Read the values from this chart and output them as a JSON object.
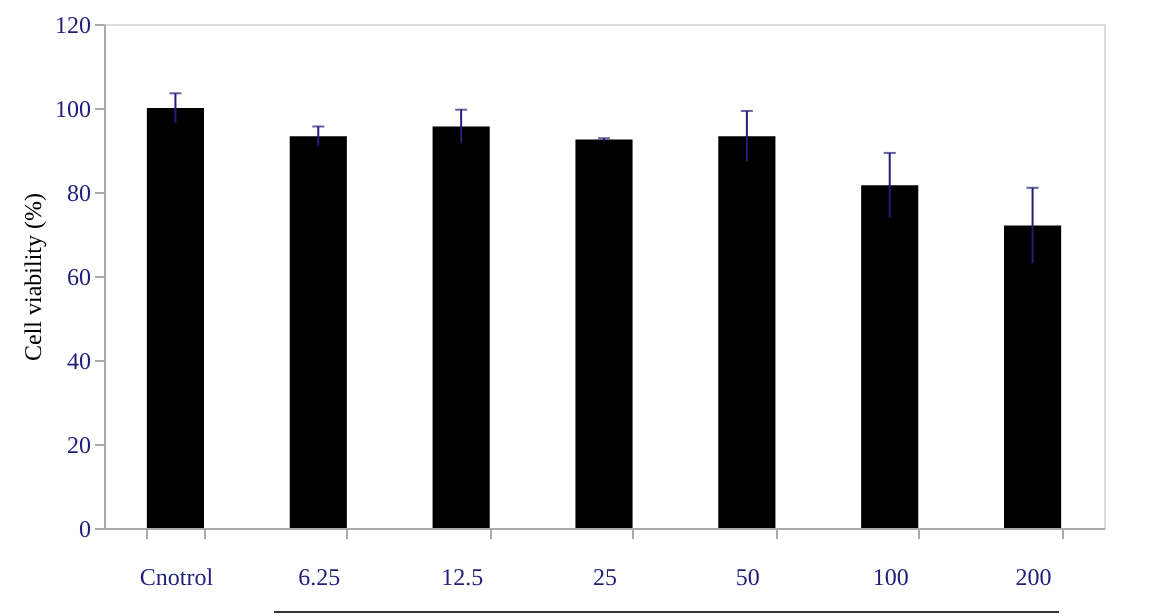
{
  "chart_data": {
    "type": "bar",
    "ylabel": "Cell viability (%)",
    "categories": [
      "Cnotrol",
      "6.25",
      "12.5",
      "25",
      "50",
      "100",
      "200"
    ],
    "values": [
      100,
      93.3,
      95.6,
      92.5,
      93.3,
      81.6,
      72
    ],
    "errors": [
      3.5,
      2.3,
      4,
      0.3,
      6,
      7.7,
      9
    ],
    "color": "#000000",
    "ylim": [
      0,
      120
    ],
    "yticks": [
      0,
      20,
      40,
      60,
      80,
      100,
      120
    ],
    "grid": false
  }
}
